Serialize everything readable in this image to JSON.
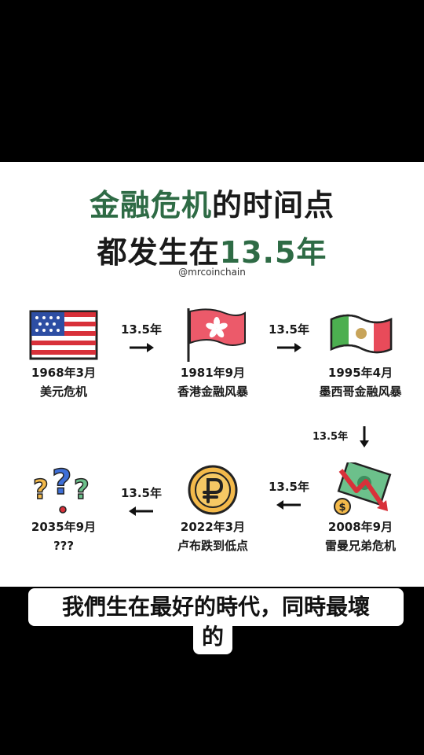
{
  "title": {
    "line1_green": "金融危机",
    "line1_black": "的时间点",
    "line2_black": "都发生在",
    "line2_green": "13.5年"
  },
  "handle": "@mrcoinchain",
  "interval": "13.5年",
  "nodes": [
    {
      "date": "1968年3月",
      "event": "美元危机",
      "icon": "us-flag-icon"
    },
    {
      "date": "1981年9月",
      "event": "香港金融风暴",
      "icon": "hong-kong-flag-icon"
    },
    {
      "date": "1995年4月",
      "event": "墨西哥金融风暴",
      "icon": "mexico-flag-icon"
    },
    {
      "date": "2008年9月",
      "event": "雷曼兄弟危机",
      "icon": "falling-money-chart-icon"
    },
    {
      "date": "2022年3月",
      "event": "卢布跌到低点",
      "icon": "ruble-coin-icon"
    },
    {
      "date": "2035年9月",
      "event": "???",
      "icon": "question-marks-icon"
    }
  ],
  "caption": {
    "line1": "我們生在最好的時代，同時最壞",
    "line2": "的"
  },
  "colors": {
    "accent_green": "#2e6b45",
    "background": "#000000",
    "card": "#ffffff"
  }
}
